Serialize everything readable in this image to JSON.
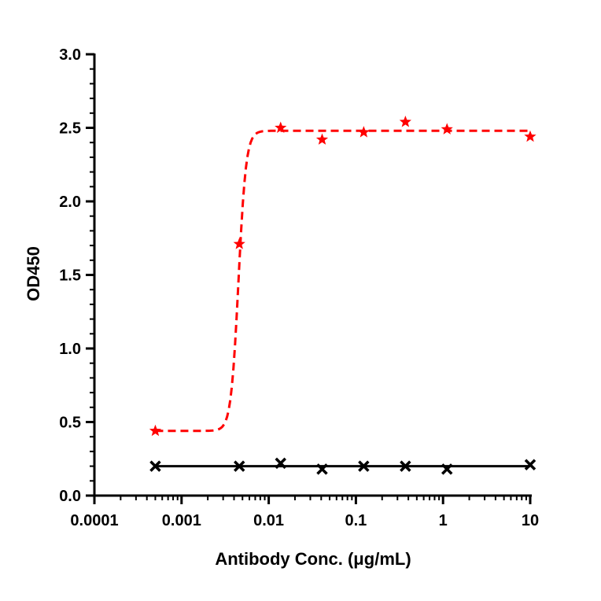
{
  "chart_data": {
    "type": "scatter",
    "xlabel": "Antibody Conc. (μg/mL)",
    "ylabel": "OD450",
    "xscale": "log",
    "xlim": [
      0.0001,
      10
    ],
    "ylim": [
      0,
      3.0
    ],
    "x_ticks": [
      0.0001,
      0.001,
      0.01,
      0.1,
      1,
      10
    ],
    "x_tick_labels": [
      "0.0001",
      "0.001",
      "0.01",
      "0.1",
      "1",
      "10"
    ],
    "y_ticks": [
      0,
      0.5,
      1.0,
      1.5,
      2.0,
      2.5,
      3.0
    ],
    "y_tick_labels": [
      "0.0",
      "0.5",
      "1.0",
      "1.5",
      "2.0",
      "2.5",
      "3.0"
    ],
    "grid": false,
    "series": [
      {
        "marker": "star",
        "color": "#ff0000",
        "fit_line": "dashed",
        "fit": {
          "bottom": 0.44,
          "top": 2.48,
          "ec50": 0.0045,
          "hill": 10
        },
        "x": [
          0.0005,
          0.0046,
          0.0137,
          0.041,
          0.123,
          0.37,
          1.11,
          10
        ],
        "y": [
          0.44,
          1.71,
          2.5,
          2.42,
          2.47,
          2.54,
          2.49,
          2.44
        ]
      },
      {
        "marker": "x",
        "color": "#000000",
        "fit_line": "solid",
        "fit": {
          "bottom": 0.2,
          "top": 0.2,
          "ec50": 0.01,
          "hill": 1
        },
        "x": [
          0.0005,
          0.0046,
          0.0137,
          0.041,
          0.123,
          0.37,
          1.11,
          10
        ],
        "y": [
          0.2,
          0.2,
          0.22,
          0.18,
          0.2,
          0.2,
          0.18,
          0.21
        ]
      }
    ]
  }
}
